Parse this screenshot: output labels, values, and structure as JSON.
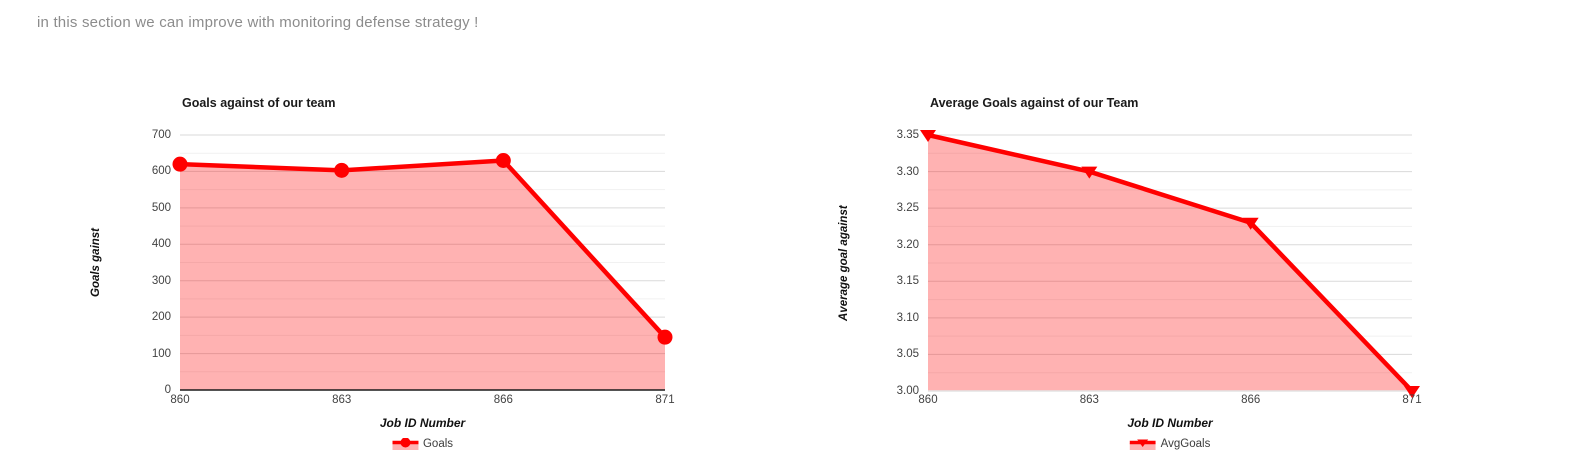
{
  "note": {
    "text": "in this section we can improve with monitoring defense strategy !"
  },
  "colors": {
    "line_red": "#ff0000",
    "area_pink": "rgba(255,0,0,0.30)",
    "major_grid": "#dadada",
    "minor_grid": "#f1f1f1",
    "tick_text": "#424242",
    "note_text": "#8c8c8c"
  },
  "chart_data": [
    {
      "type": "area",
      "title": "Goals against of our team",
      "xlabel": "Job ID Number",
      "ylabel": "Goals gainst",
      "categories": [
        "860",
        "863",
        "866",
        "871"
      ],
      "values": [
        620,
        603,
        630,
        145
      ],
      "ylim": [
        0,
        700
      ],
      "ytick_step": 100,
      "ytick_decimals": 0,
      "legend": "Goals",
      "legend_position": "bottom",
      "grid": true,
      "marker": "circle",
      "line_color": "#ff0000",
      "fill_color": "rgba(255,0,0,0.30)",
      "axis_color": "#1a1a1a"
    },
    {
      "type": "area",
      "title": "Average Goals against of our Team",
      "xlabel": "Job ID Number",
      "ylabel": "Average goal against",
      "categories": [
        "860",
        "863",
        "866",
        "871"
      ],
      "values": [
        3.35,
        3.3,
        3.23,
        3.0
      ],
      "ylim": [
        3.0,
        3.35
      ],
      "ytick_step": 0.05,
      "ytick_decimals": 2,
      "legend": "AvgGoals",
      "legend_position": "bottom",
      "grid": true,
      "marker": "triangle-down",
      "line_color": "#ff0000",
      "fill_color": "rgba(255,0,0,0.30)",
      "axis_color": "#e3e3e3"
    }
  ]
}
